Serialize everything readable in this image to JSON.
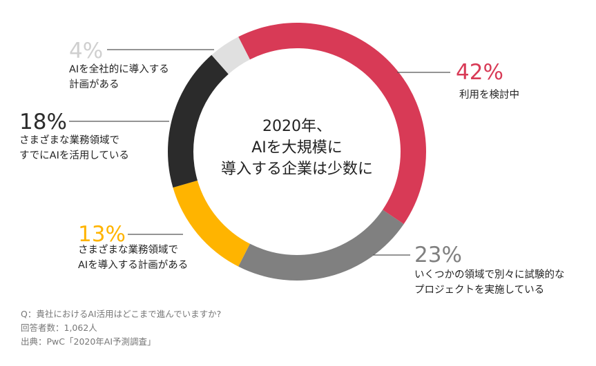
{
  "chart_data": {
    "type": "donut",
    "title": "2020年、\nAIを大規模に\n導入する企業は少数に",
    "categories": [
      "利用を検討中",
      "いくつかの領域で別々に試験的な\nプロジェクトを実施している",
      "さまざまな業務領域で\nAIを導入する計画がある",
      "さまざまな業務領域で\nすでにAIを活用している",
      "AIを全社的に導入する\n計画がある"
    ],
    "values": [
      42,
      23,
      13,
      18,
      4
    ],
    "value_labels": [
      "42%",
      "23%",
      "13%",
      "18%",
      "4%"
    ],
    "colors": [
      "#d83a56",
      "#808080",
      "#ffb400",
      "#2b2b2b",
      "#e0e0e0"
    ],
    "notes": [
      "Q：貴社におけるAI活用はどこまで進んでいますか?",
      "回答者数：1,062人",
      "出典：PwC「2020年AI予測調査」"
    ]
  }
}
